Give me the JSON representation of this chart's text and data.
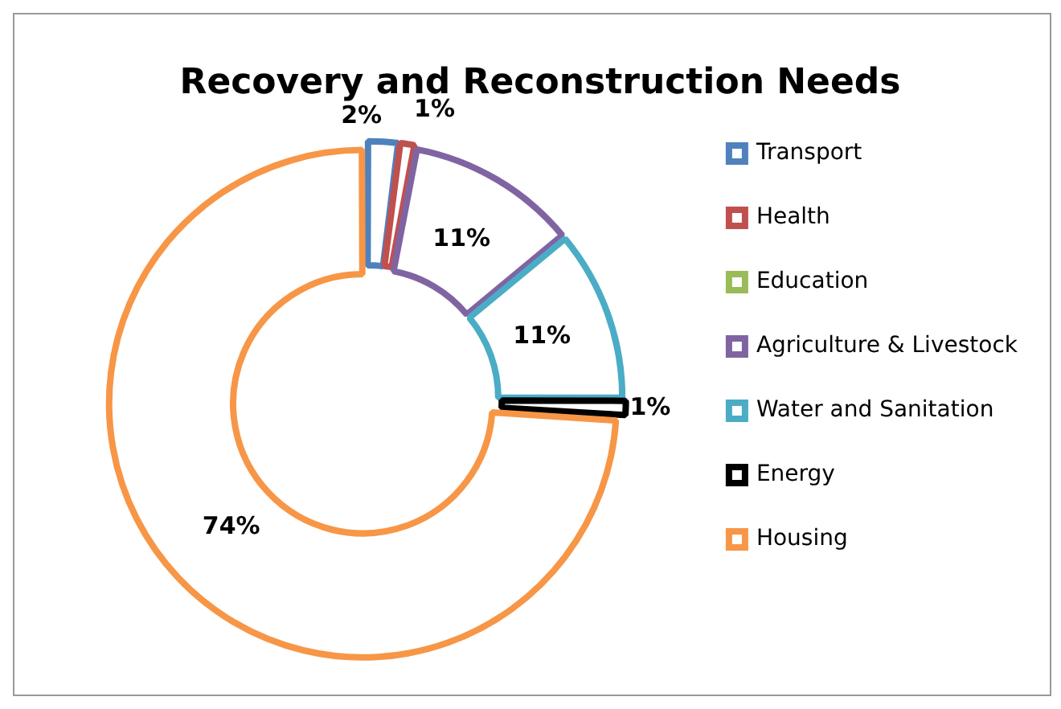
{
  "chart_data": {
    "type": "donut",
    "title": "Recovery and Reconstruction Needs",
    "categories": [
      "Transport",
      "Health",
      "Education",
      "Agriculture & Livestock",
      "Water and Sanitation",
      "Energy",
      "Housing"
    ],
    "values": [
      2,
      1,
      0,
      11,
      11,
      1,
      74
    ],
    "value_labels": [
      "2%",
      "1%",
      null,
      "11%",
      "11%",
      "1%",
      "74%"
    ],
    "colors": [
      "#4f81bd",
      "#c0504d",
      "#9bbb59",
      "#8064a2",
      "#4bacc6",
      "#000000",
      "#f79646"
    ],
    "legend": "right"
  }
}
